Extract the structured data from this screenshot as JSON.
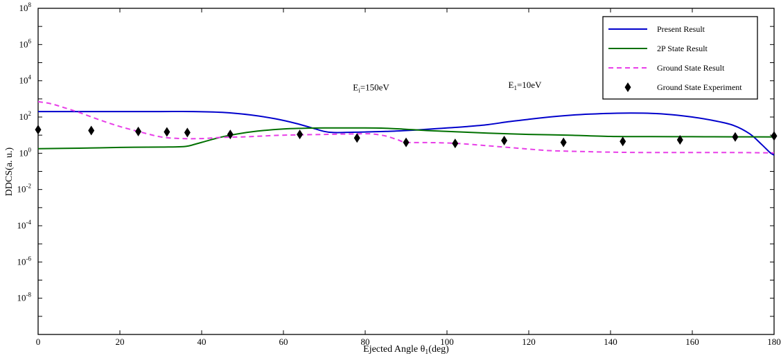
{
  "chart_data": {
    "type": "line",
    "title": "",
    "xlabel": "Ejected Angle θ",
    "xlabel_sub": "1",
    "xlabel_suffix": "(deg)",
    "ylabel": "DDCS(a. u.)",
    "xlim": [
      0,
      180
    ],
    "ylim_log10": [
      -10,
      8
    ],
    "yscale": "log",
    "grid": false,
    "legend_position": "top-right",
    "x_ticks": [
      0,
      20,
      40,
      60,
      80,
      100,
      120,
      140,
      160,
      180
    ],
    "y_tick_exponents": [
      -8,
      -6,
      -4,
      -2,
      0,
      2,
      4,
      6,
      8
    ],
    "annotations": [
      {
        "base": "E",
        "sub": "i",
        "rest": "=150eV",
        "x": 77,
        "y": 3000
      },
      {
        "base": "E",
        "sub": "1",
        "rest": "=10eV",
        "x": 115,
        "y": 4000
      }
    ],
    "series": [
      {
        "name": "Present Result",
        "style": "solid",
        "color": "#0000cc",
        "x": [
          0,
          10,
          20,
          30,
          38,
          45,
          52,
          58,
          63,
          67,
          70,
          72,
          75,
          80,
          85,
          90,
          95,
          100,
          105,
          110,
          115,
          120,
          125,
          130,
          135,
          140,
          145,
          150,
          155,
          160,
          165,
          170,
          174,
          177,
          179,
          180
        ],
        "y": [
          200,
          200,
          200,
          200,
          200,
          180,
          130,
          80,
          45,
          25,
          16,
          14,
          14,
          15,
          16,
          18,
          21,
          25,
          30,
          38,
          55,
          75,
          100,
          125,
          145,
          160,
          165,
          160,
          135,
          100,
          65,
          35,
          12,
          3,
          1.1,
          0.8
        ]
      },
      {
        "name": "2P State Result",
        "style": "solid",
        "color": "#007000",
        "x": [
          0,
          10,
          20,
          30,
          35,
          37,
          40,
          45,
          50,
          55,
          60,
          65,
          70,
          75,
          80,
          85,
          90,
          95,
          100,
          110,
          120,
          130,
          140,
          150,
          160,
          170,
          180
        ],
        "y": [
          1.8,
          1.9,
          2.1,
          2.2,
          2.3,
          2.6,
          4,
          8,
          13,
          18,
          22,
          24,
          25,
          25,
          25,
          24,
          21,
          18,
          16,
          13,
          11,
          10,
          8.5,
          8.3,
          8.2,
          8.1,
          8
        ]
      },
      {
        "name": "Ground State Result",
        "style": "dashed",
        "color": "#e83ee8",
        "x": [
          0,
          3,
          6,
          10,
          15,
          20,
          25,
          30,
          35,
          40,
          45,
          50,
          55,
          60,
          65,
          70,
          75,
          80,
          82,
          85,
          88,
          90,
          95,
          100,
          105,
          110,
          115,
          120,
          125,
          130,
          140,
          150,
          160,
          170,
          180
        ],
        "y": [
          700,
          550,
          350,
          180,
          70,
          30,
          15,
          8,
          6.5,
          6.5,
          7.5,
          8,
          9,
          10,
          10.5,
          11,
          11.5,
          12,
          11.5,
          9,
          5.5,
          4,
          3.9,
          3.7,
          3.2,
          2.6,
          2.1,
          1.7,
          1.4,
          1.3,
          1.15,
          1.1,
          1.1,
          1.1,
          1.05
        ]
      },
      {
        "name": "Ground State Experiment",
        "style": "marker",
        "color": "#000000",
        "x": [
          0,
          13,
          24.5,
          31.5,
          36.5,
          47,
          64,
          78,
          90,
          102,
          114,
          128.5,
          143,
          157,
          170.5,
          180
        ],
        "y": [
          20,
          18,
          16,
          15,
          14,
          11,
          11,
          7,
          4,
          3.5,
          5,
          4,
          4.5,
          5.5,
          8,
          9
        ]
      }
    ]
  }
}
